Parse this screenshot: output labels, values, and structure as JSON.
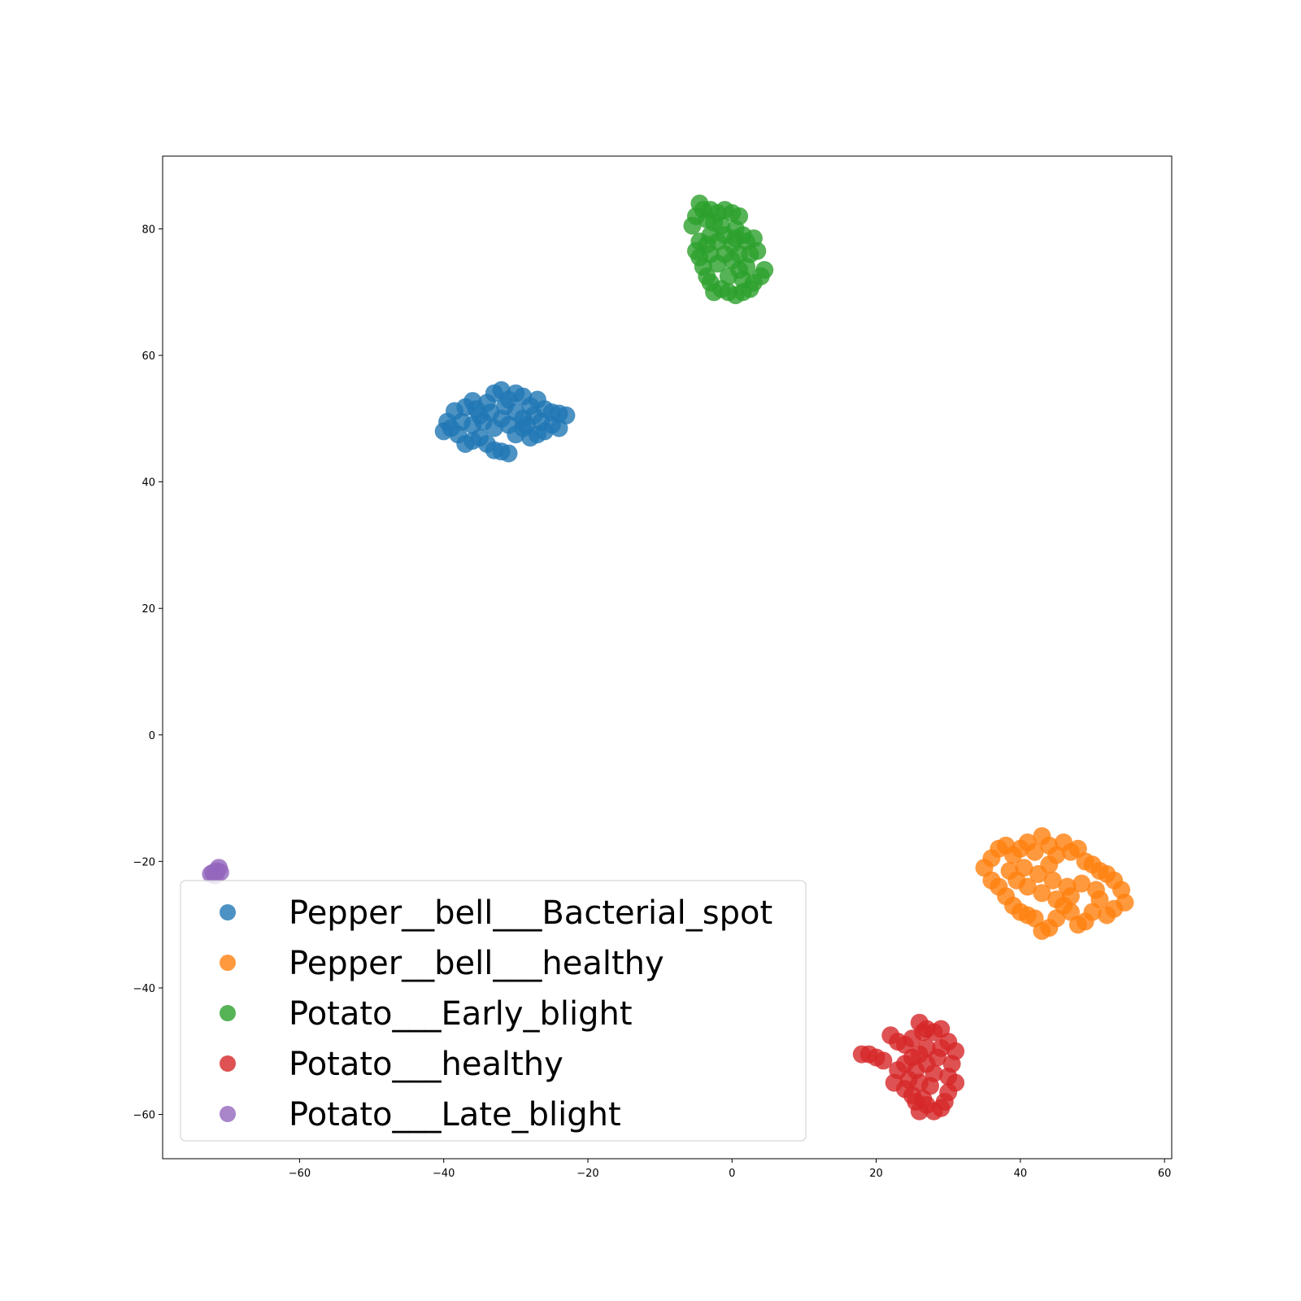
{
  "chart_data": {
    "type": "scatter",
    "title": "",
    "xlabel": "",
    "ylabel": "",
    "xlim": [
      -79,
      61
    ],
    "ylim": [
      -67,
      91.5
    ],
    "x_ticks": [
      -60,
      -40,
      -20,
      0,
      20,
      40,
      60
    ],
    "y_ticks": [
      -60,
      -40,
      -20,
      0,
      20,
      40,
      60,
      80
    ],
    "grid": false,
    "legend_position": "lower-left",
    "series": [
      {
        "name": "Pepper__bell___Bacterial_spot",
        "color": "#1f77b4",
        "points": [
          [
            -40,
            48
          ],
          [
            -39.5,
            49.5
          ],
          [
            -38.5,
            51.2
          ],
          [
            -37,
            51.8
          ],
          [
            -36,
            52.8
          ],
          [
            -35,
            50.5
          ],
          [
            -34,
            52.5
          ],
          [
            -33,
            54
          ],
          [
            -32,
            54.5
          ],
          [
            -31,
            53
          ],
          [
            -30,
            54
          ],
          [
            -29,
            53.5
          ],
          [
            -28,
            52
          ],
          [
            -27,
            53
          ],
          [
            -26,
            51.5
          ],
          [
            -25,
            51
          ],
          [
            -24,
            50.8
          ],
          [
            -23,
            50.5
          ],
          [
            -24,
            48.5
          ],
          [
            -25,
            49
          ],
          [
            -26,
            48
          ],
          [
            -27,
            47.5
          ],
          [
            -28,
            47
          ],
          [
            -29,
            48.5
          ],
          [
            -30,
            47.5
          ],
          [
            -31,
            49
          ],
          [
            -32,
            50
          ],
          [
            -33,
            48.5
          ],
          [
            -34,
            46
          ],
          [
            -35,
            47
          ],
          [
            -36,
            46.5
          ],
          [
            -37,
            46
          ],
          [
            -38,
            47.5
          ],
          [
            -39,
            48.5
          ],
          [
            -33,
            45
          ],
          [
            -32,
            44.8
          ],
          [
            -31,
            44.5
          ],
          [
            -36,
            49
          ],
          [
            -34.5,
            49.5
          ],
          [
            -30,
            51
          ],
          [
            -29,
            50
          ],
          [
            -27.5,
            50.5
          ],
          [
            -31.5,
            52
          ],
          [
            -35.5,
            51.5
          ],
          [
            -37.5,
            49.5
          ],
          [
            -28.5,
            49
          ],
          [
            -26.5,
            49.5
          ],
          [
            -33.5,
            51
          ]
        ]
      },
      {
        "name": "Pepper__bell___healthy",
        "color": "#ff7f0e",
        "points": [
          [
            35,
            -21
          ],
          [
            36,
            -19.5
          ],
          [
            37,
            -18
          ],
          [
            38,
            -17.5
          ],
          [
            39,
            -19
          ],
          [
            40,
            -18
          ],
          [
            41,
            -17
          ],
          [
            42,
            -18.5
          ],
          [
            43,
            -16
          ],
          [
            44,
            -17.5
          ],
          [
            45,
            -19
          ],
          [
            46,
            -17
          ],
          [
            47,
            -18.5
          ],
          [
            48,
            -18
          ],
          [
            49,
            -20
          ],
          [
            50,
            -20.5
          ],
          [
            51,
            -21.5
          ],
          [
            52,
            -22
          ],
          [
            53,
            -23
          ],
          [
            54,
            -24.5
          ],
          [
            54.5,
            -26.5
          ],
          [
            53,
            -27.5
          ],
          [
            52,
            -28.5
          ],
          [
            51,
            -26
          ],
          [
            50,
            -28
          ],
          [
            49,
            -29.5
          ],
          [
            48,
            -30
          ],
          [
            47,
            -28
          ],
          [
            46,
            -27
          ],
          [
            45,
            -29
          ],
          [
            44,
            -30.5
          ],
          [
            43,
            -31
          ],
          [
            42,
            -29
          ],
          [
            41,
            -28.5
          ],
          [
            40,
            -28
          ],
          [
            39,
            -27
          ],
          [
            38,
            -25.5
          ],
          [
            37,
            -24
          ],
          [
            36,
            -23
          ],
          [
            38.5,
            -21.5
          ],
          [
            40.5,
            -21
          ],
          [
            42.5,
            -22
          ],
          [
            44.5,
            -23
          ],
          [
            46.5,
            -24
          ],
          [
            48.5,
            -23.5
          ],
          [
            50.5,
            -24.5
          ],
          [
            43,
            -25
          ],
          [
            45,
            -26
          ],
          [
            47,
            -25.5
          ],
          [
            41,
            -24
          ],
          [
            39.5,
            -23
          ],
          [
            44,
            -20.5
          ]
        ]
      },
      {
        "name": "Potato___Early_blight",
        "color": "#2ca02c",
        "points": [
          [
            -5.5,
            80.5
          ],
          [
            -5,
            82
          ],
          [
            -4.5,
            84
          ],
          [
            -4,
            83
          ],
          [
            -3.5,
            81.5
          ],
          [
            -3,
            83
          ],
          [
            -2,
            82.5
          ],
          [
            -1,
            83
          ],
          [
            0,
            82.5
          ],
          [
            1,
            82
          ],
          [
            0.5,
            80
          ],
          [
            1.5,
            79
          ],
          [
            2,
            78
          ],
          [
            3,
            78.5
          ],
          [
            3.5,
            76.5
          ],
          [
            4.5,
            73.5
          ],
          [
            4,
            72.5
          ],
          [
            3,
            71.5
          ],
          [
            2.5,
            70.5
          ],
          [
            1.5,
            70
          ],
          [
            0.5,
            69.5
          ],
          [
            -0.5,
            70
          ],
          [
            -1.5,
            70.5
          ],
          [
            -2.5,
            70
          ],
          [
            -3,
            71.5
          ],
          [
            -3.5,
            72.5
          ],
          [
            -4,
            74
          ],
          [
            -4.5,
            75.5
          ],
          [
            -5,
            76.5
          ],
          [
            -4.5,
            78
          ],
          [
            -3,
            76
          ],
          [
            -2,
            74.5
          ],
          [
            -1,
            76
          ],
          [
            0,
            75
          ],
          [
            1,
            73.5
          ],
          [
            2,
            74
          ],
          [
            -1,
            79
          ],
          [
            -2,
            78
          ],
          [
            0,
            77.5
          ],
          [
            -3,
            79
          ],
          [
            1,
            76
          ],
          [
            -0.5,
            72.5
          ],
          [
            -2.5,
            81
          ],
          [
            -1.5,
            80.5
          ],
          [
            0.5,
            78.5
          ],
          [
            2.5,
            76
          ],
          [
            -3.5,
            77.5
          ],
          [
            1.5,
            72
          ]
        ]
      },
      {
        "name": "Potato___healthy",
        "color": "#d62728",
        "points": [
          [
            18,
            -50.5
          ],
          [
            19,
            -50.5
          ],
          [
            20,
            -51
          ],
          [
            21,
            -51.5
          ],
          [
            22,
            -47.5
          ],
          [
            23,
            -48.5
          ],
          [
            24,
            -49
          ],
          [
            25,
            -48
          ],
          [
            26,
            -45.5
          ],
          [
            26.5,
            -47
          ],
          [
            27,
            -46.5
          ],
          [
            28,
            -47
          ],
          [
            29,
            -46.5
          ],
          [
            30,
            -48.5
          ],
          [
            31,
            -50
          ],
          [
            30.5,
            -52
          ],
          [
            30,
            -54
          ],
          [
            31,
            -55
          ],
          [
            30,
            -56.5
          ],
          [
            29.5,
            -58
          ],
          [
            29,
            -59
          ],
          [
            28,
            -59.5
          ],
          [
            27,
            -58.5
          ],
          [
            26,
            -59.5
          ],
          [
            25.5,
            -58
          ],
          [
            25,
            -57
          ],
          [
            24,
            -56
          ],
          [
            24.5,
            -54.5
          ],
          [
            23,
            -53
          ],
          [
            22.5,
            -55
          ],
          [
            24,
            -52
          ],
          [
            25,
            -51
          ],
          [
            26,
            -50.5
          ],
          [
            27,
            -52
          ],
          [
            28,
            -53.5
          ],
          [
            27.5,
            -55.5
          ],
          [
            26,
            -55
          ],
          [
            25.5,
            -53
          ],
          [
            28.5,
            -51
          ],
          [
            29,
            -49.5
          ],
          [
            27,
            -49.5
          ],
          [
            26.5,
            -57.5
          ]
        ]
      },
      {
        "name": "Potato___Late_blight",
        "color": "#9467bd",
        "points": [
          [
            -72,
            -21.8
          ],
          [
            -71.5,
            -21.5
          ],
          [
            -71.2,
            -21
          ],
          [
            -72.3,
            -22
          ],
          [
            -71,
            -21.7
          ],
          [
            -71.7,
            -22.2
          ]
        ]
      }
    ]
  }
}
